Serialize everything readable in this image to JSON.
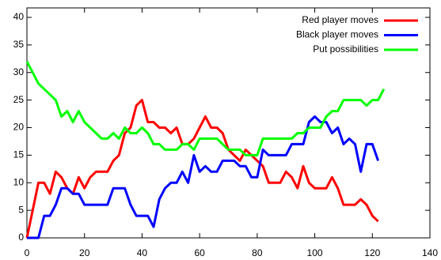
{
  "chart_data": {
    "type": "line",
    "x": [
      0,
      2,
      4,
      6,
      8,
      10,
      12,
      14,
      16,
      18,
      20,
      22,
      24,
      26,
      28,
      30,
      32,
      34,
      36,
      38,
      40,
      42,
      44,
      46,
      48,
      50,
      52,
      54,
      56,
      58,
      60,
      62,
      64,
      66,
      68,
      70,
      72,
      74,
      76,
      78,
      80,
      82,
      84,
      86,
      88,
      90,
      92,
      94,
      96,
      98,
      100,
      102,
      104,
      106,
      108,
      110,
      112,
      114,
      116,
      118,
      120,
      122,
      124
    ],
    "series": [
      {
        "name": "Red player moves",
        "color": "#ff0000",
        "values": [
          0,
          5,
          10,
          10,
          8,
          12,
          11,
          9,
          8,
          11,
          9,
          11,
          12,
          12,
          12,
          14,
          15,
          19,
          20,
          24,
          25,
          21,
          21,
          20,
          20,
          19,
          20,
          17,
          17,
          18,
          20,
          22,
          20,
          20,
          19,
          16,
          15,
          14,
          16,
          15,
          14,
          13,
          10,
          10,
          10,
          12,
          11,
          9,
          13,
          10,
          9,
          9,
          9,
          11,
          9,
          6,
          6,
          6,
          7,
          6,
          4,
          3,
          null
        ]
      },
      {
        "name": "Black player moves",
        "color": "#0000ff",
        "values": [
          0,
          0,
          0,
          4,
          4,
          6,
          9,
          9,
          8,
          8,
          6,
          6,
          6,
          6,
          6,
          9,
          9,
          9,
          6,
          4,
          4,
          4,
          2,
          7,
          9,
          10,
          10,
          12,
          10,
          15,
          12,
          13,
          12,
          12,
          14,
          14,
          14,
          13,
          13,
          11,
          11,
          16,
          15,
          15,
          15,
          15,
          17,
          17,
          17,
          21,
          22,
          21,
          21,
          19,
          20,
          17,
          18,
          17,
          12,
          17,
          17,
          14,
          null
        ]
      },
      {
        "name": "Put possibilities",
        "color": "#00ff00",
        "values": [
          32,
          30,
          28,
          27,
          26,
          25,
          22,
          23,
          21,
          23,
          21,
          20,
          19,
          18,
          18,
          19,
          18,
          20,
          19,
          19,
          20,
          19,
          17,
          17,
          16,
          16,
          16,
          17,
          17,
          16,
          18,
          18,
          18,
          18,
          17,
          16,
          16,
          16,
          15,
          15,
          15,
          18,
          18,
          18,
          18,
          18,
          18,
          19,
          19,
          20,
          20,
          20,
          22,
          23,
          23,
          25,
          25,
          25,
          25,
          24,
          25,
          25,
          27
        ]
      }
    ],
    "xlim": [
      0,
      140
    ],
    "xticks": [
      0,
      20,
      40,
      60,
      80,
      100,
      120,
      140
    ],
    "ylim": [
      0,
      40
    ],
    "yticks": [
      0,
      5,
      10,
      15,
      20,
      25,
      30,
      35,
      40
    ],
    "legend": "top-right"
  }
}
